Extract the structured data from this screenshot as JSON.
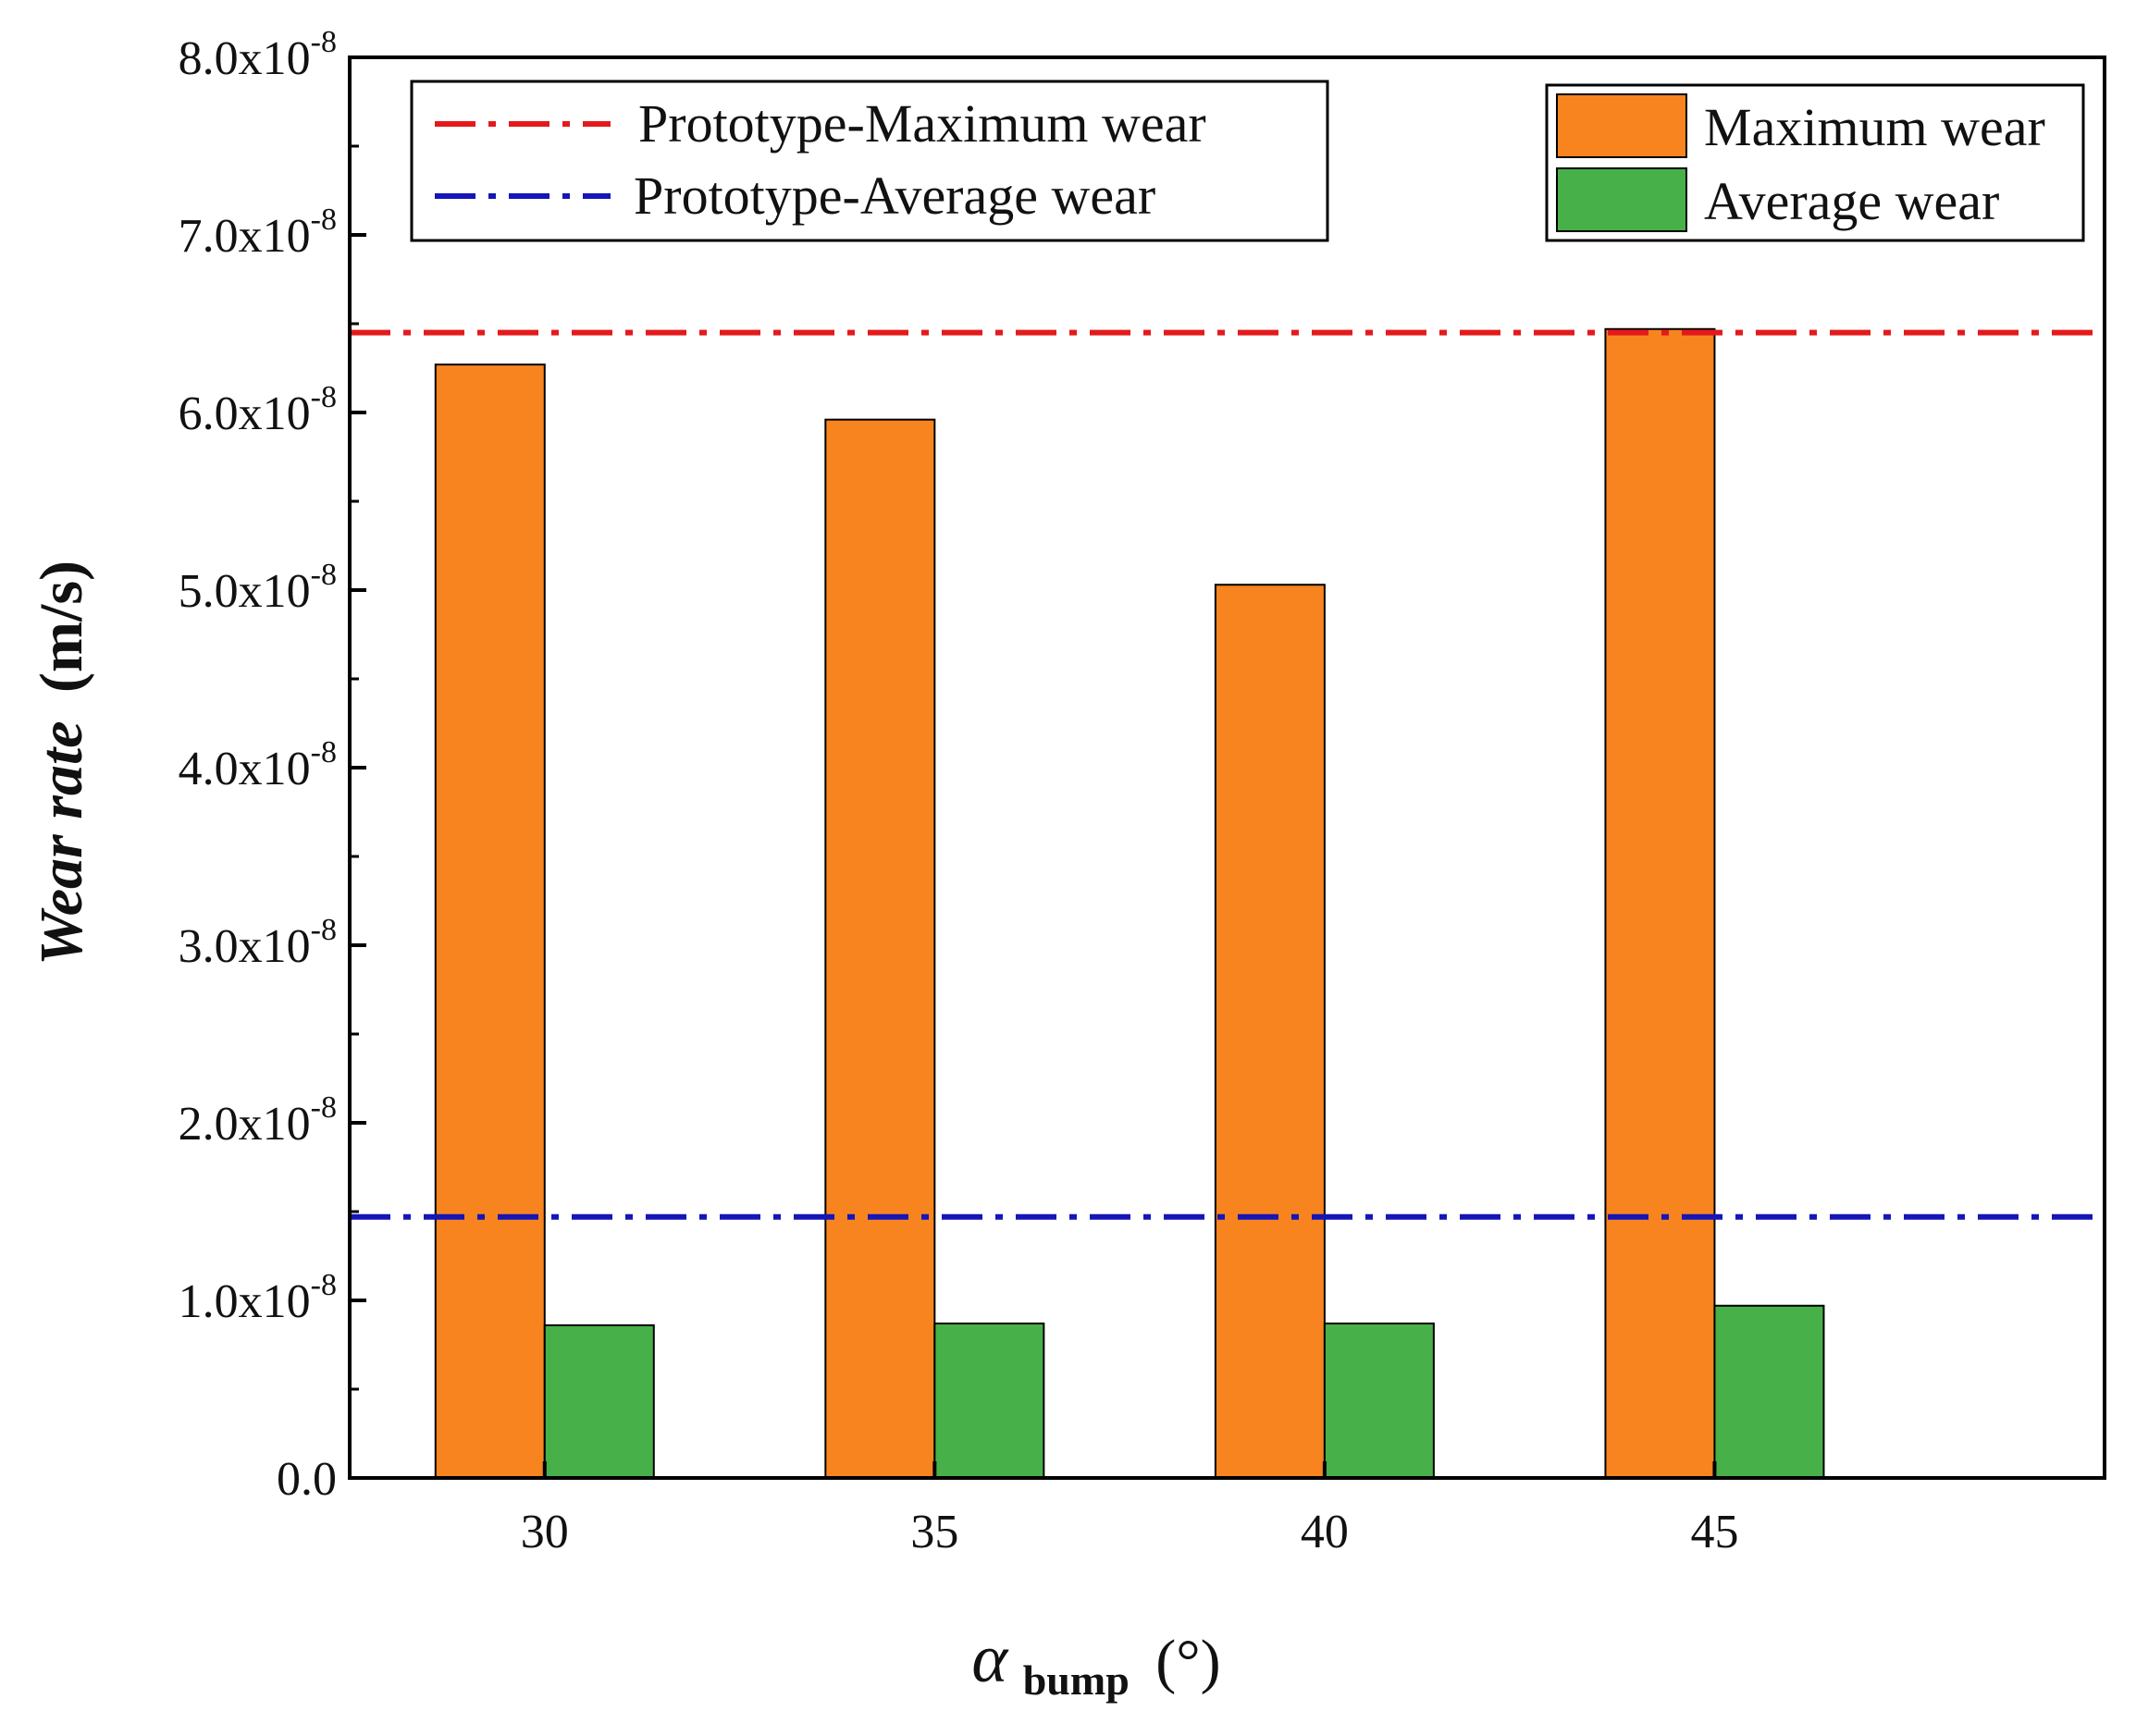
{
  "chart_data": {
    "type": "bar",
    "title": "",
    "xlabel": {
      "symbol": "α",
      "subscript": "bump",
      "unit": "(°)"
    },
    "ylabel": {
      "italic_part": "Wear rate",
      "unit_part": "(m/s)"
    },
    "ylim": [
      0,
      8e-08
    ],
    "y_ticks": [
      {
        "mantissa": "0.0",
        "exponent": ""
      },
      {
        "mantissa": "1.0x10",
        "exponent": "-8"
      },
      {
        "mantissa": "2.0x10",
        "exponent": "-8"
      },
      {
        "mantissa": "3.0x10",
        "exponent": "-8"
      },
      {
        "mantissa": "4.0x10",
        "exponent": "-8"
      },
      {
        "mantissa": "5.0x10",
        "exponent": "-8"
      },
      {
        "mantissa": "6.0x10",
        "exponent": "-8"
      },
      {
        "mantissa": "7.0x10",
        "exponent": "-8"
      },
      {
        "mantissa": "8.0x10",
        "exponent": "-8"
      }
    ],
    "categories": [
      "30",
      "35",
      "40",
      "45"
    ],
    "series": [
      {
        "name": "Maximum wear",
        "color": "#F7841F",
        "values": [
          6.27e-08,
          5.96e-08,
          5.03e-08,
          6.47e-08
        ]
      },
      {
        "name": "Average wear",
        "color": "#47B048",
        "values": [
          8.6e-09,
          8.7e-09,
          8.7e-09,
          9.7e-09
        ]
      }
    ],
    "reference_lines": [
      {
        "name": "Prototype-Maximum wear",
        "value": 6.45e-08,
        "color": "#E31A1C",
        "style": "dash-dot"
      },
      {
        "name": "Prototype-Average wear",
        "value": 1.47e-08,
        "color": "#1515B8",
        "style": "dash-dot"
      }
    ],
    "legend_reference_placement": "top-left",
    "legend_bars_placement": "top-right",
    "grid": false
  }
}
